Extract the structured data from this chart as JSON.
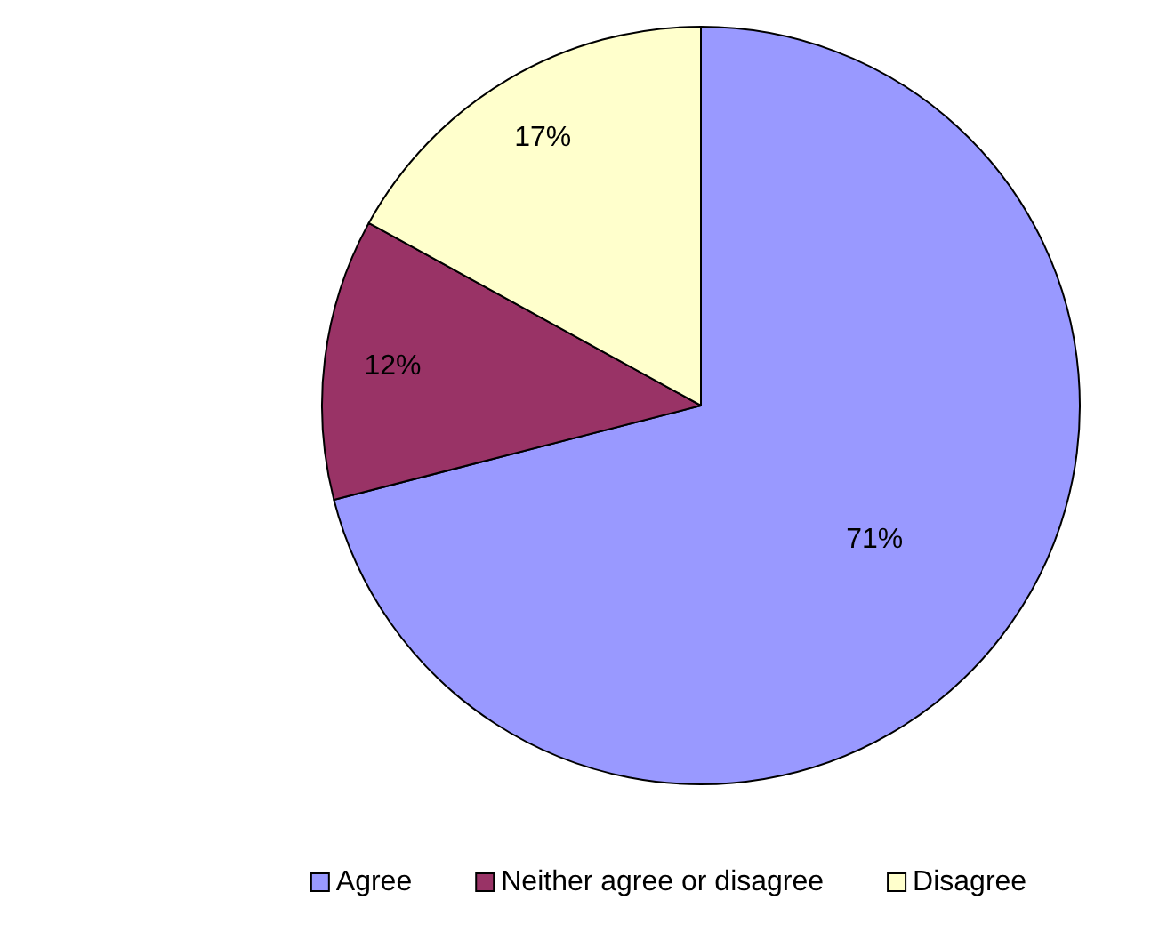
{
  "chart_data": {
    "type": "pie",
    "categories": [
      "Agree",
      "Neither agree or disagree",
      "Disagree"
    ],
    "values": [
      71,
      12,
      17
    ],
    "colors": [
      "#9999ff",
      "#993366",
      "#ffffcc"
    ],
    "value_labels": [
      "71%",
      "12%",
      "17%"
    ],
    "legend": "bottom"
  }
}
